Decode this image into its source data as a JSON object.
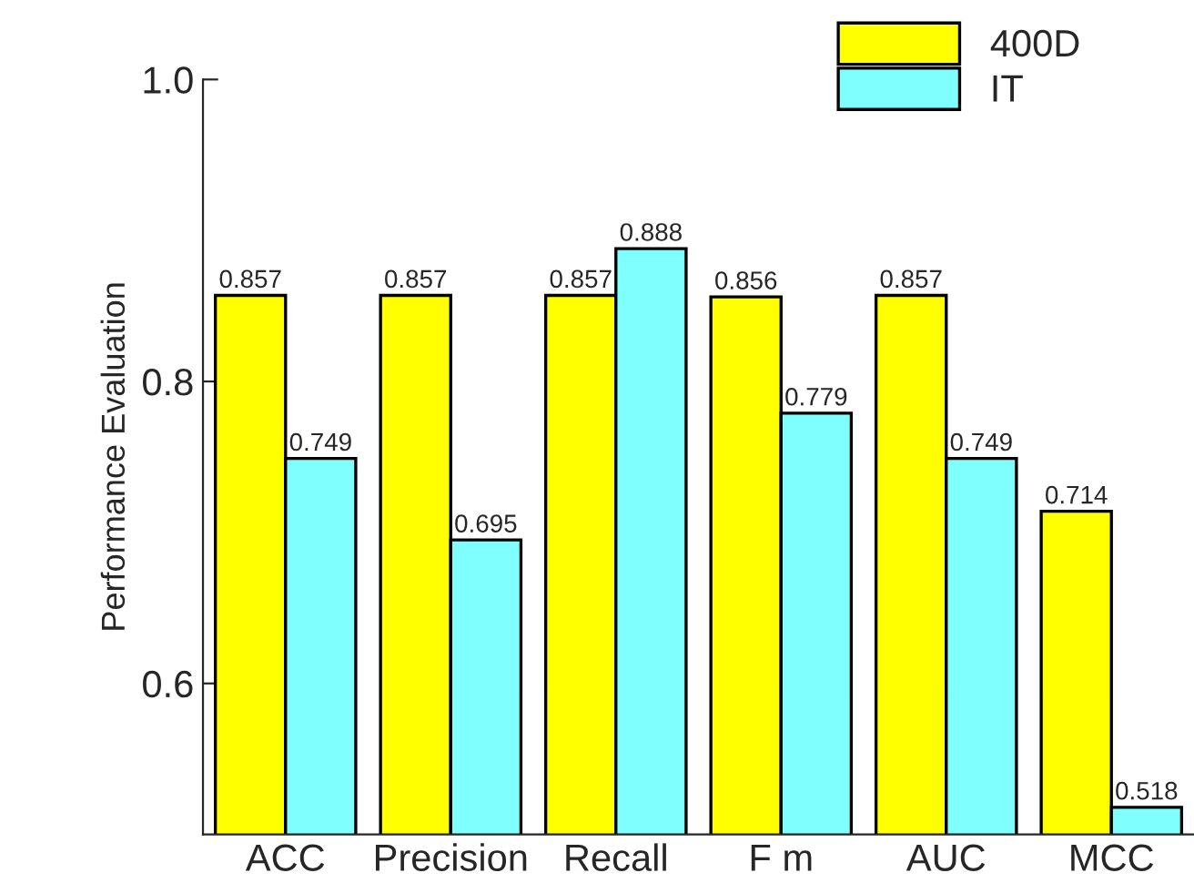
{
  "chart_data": {
    "type": "bar",
    "categories": [
      "ACC",
      "Precision",
      "Recall",
      "F m",
      "AUC",
      "MCC"
    ],
    "series": [
      {
        "name": "400D",
        "color": "#ffff00",
        "values": [
          0.857,
          0.857,
          0.857,
          0.856,
          0.857,
          0.714
        ]
      },
      {
        "name": "IT",
        "color": "#80ffff",
        "values": [
          0.749,
          0.695,
          0.888,
          0.779,
          0.749,
          0.518
        ]
      }
    ],
    "ylabel": "Performance Evaluation",
    "ylim": [
      0.5,
      1.0
    ],
    "yticks": [
      0.6,
      0.8,
      {
        "value": 1,
        "label": "1.0"
      }
    ],
    "data_labels": true,
    "legend": "top right",
    "grid": false
  }
}
